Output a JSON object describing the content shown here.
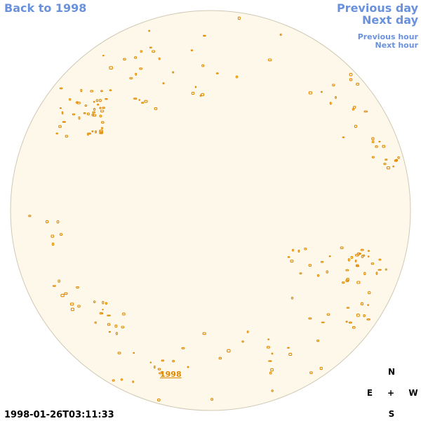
{
  "nav": {
    "back_year": "Back to 1998",
    "previous_day": "Previous day",
    "next_day": "Next day",
    "previous_hour": "Previous hour",
    "next_hour": "Next hour"
  },
  "disk": {
    "year_link": "1998"
  },
  "compass": {
    "north": "N",
    "east": "E",
    "center": "+",
    "west": "W",
    "south": "S"
  },
  "timestamp": "1998-01-26T03:11:33"
}
